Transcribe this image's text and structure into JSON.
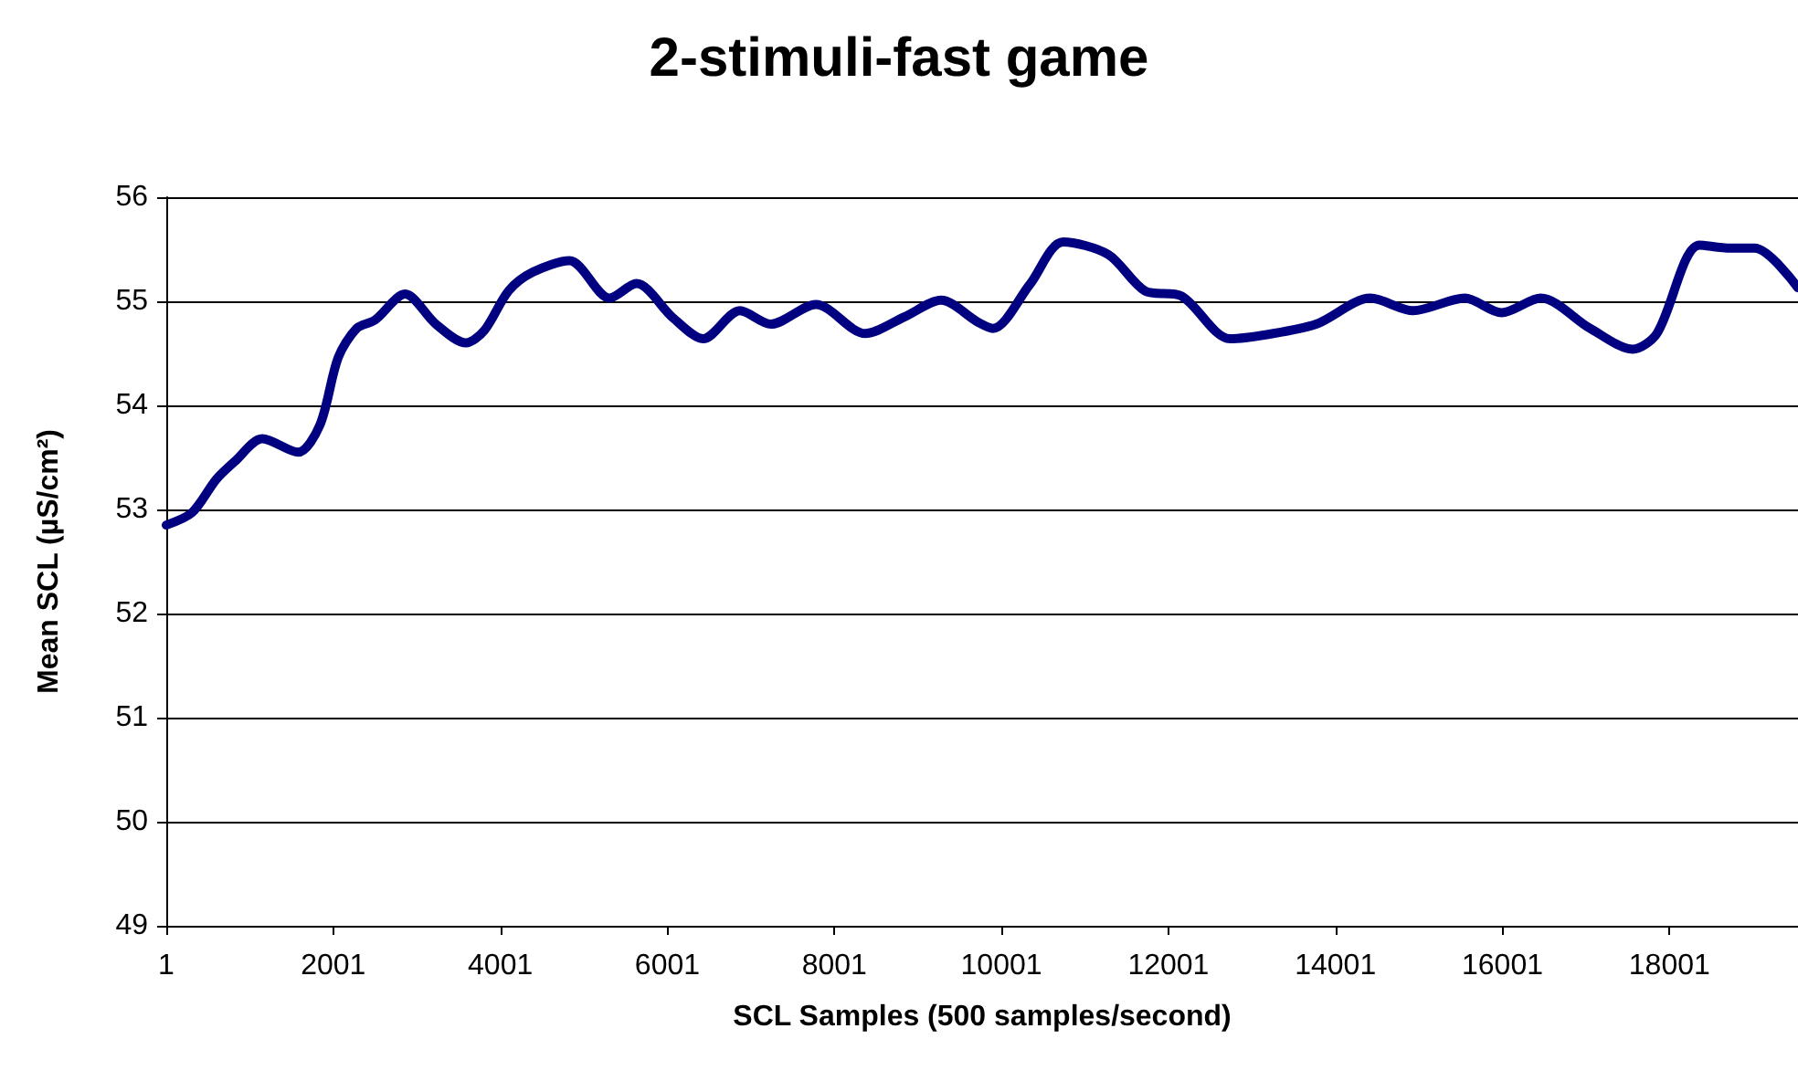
{
  "chart_data": {
    "type": "line",
    "title": "2-stimuli-fast game",
    "xlabel": "SCL Samples (500 samples/second)",
    "ylabel": "Mean SCL (µS/cm²)",
    "x": [
      1,
      310,
      600,
      820,
      1150,
      1580,
      1840,
      2060,
      2280,
      2500,
      2860,
      3230,
      3590,
      3810,
      4100,
      4390,
      4830,
      5310,
      5630,
      6070,
      6430,
      6870,
      7240,
      7780,
      8370,
      8840,
      9280,
      9720,
      9900,
      10340,
      10740,
      11280,
      11720,
      12160,
      12740,
      13180,
      13770,
      14420,
      14930,
      15550,
      15990,
      16460,
      17050,
      17560,
      17850,
      18360,
      18730,
      19020,
      19540
    ],
    "series": [
      {
        "color": "#000080",
        "values": [
          52.85,
          52.97,
          53.29,
          53.46,
          53.68,
          53.55,
          53.81,
          54.46,
          54.74,
          54.82,
          55.07,
          54.78,
          54.6,
          54.72,
          55.1,
          55.28,
          55.39,
          55.03,
          55.17,
          54.84,
          54.64,
          54.91,
          54.78,
          54.97,
          54.69,
          54.85,
          55.01,
          54.8,
          54.74,
          55.16,
          55.57,
          55.45,
          55.1,
          55.05,
          54.64,
          54.68,
          54.78,
          55.03,
          54.91,
          55.03,
          54.89,
          55.03,
          54.74,
          54.54,
          54.69,
          55.54,
          55.51,
          55.51,
          55.13
        ]
      }
    ],
    "xlim": [
      1,
      19540
    ],
    "xticks": [
      1,
      2001,
      4001,
      6001,
      8001,
      10001,
      12001,
      14001,
      16001,
      18001
    ],
    "ylim": [
      49,
      56
    ],
    "yticks": [
      49,
      50,
      51,
      52,
      53,
      54,
      55,
      56
    ],
    "grid": "y",
    "marker": "none",
    "line_style": "solid"
  }
}
